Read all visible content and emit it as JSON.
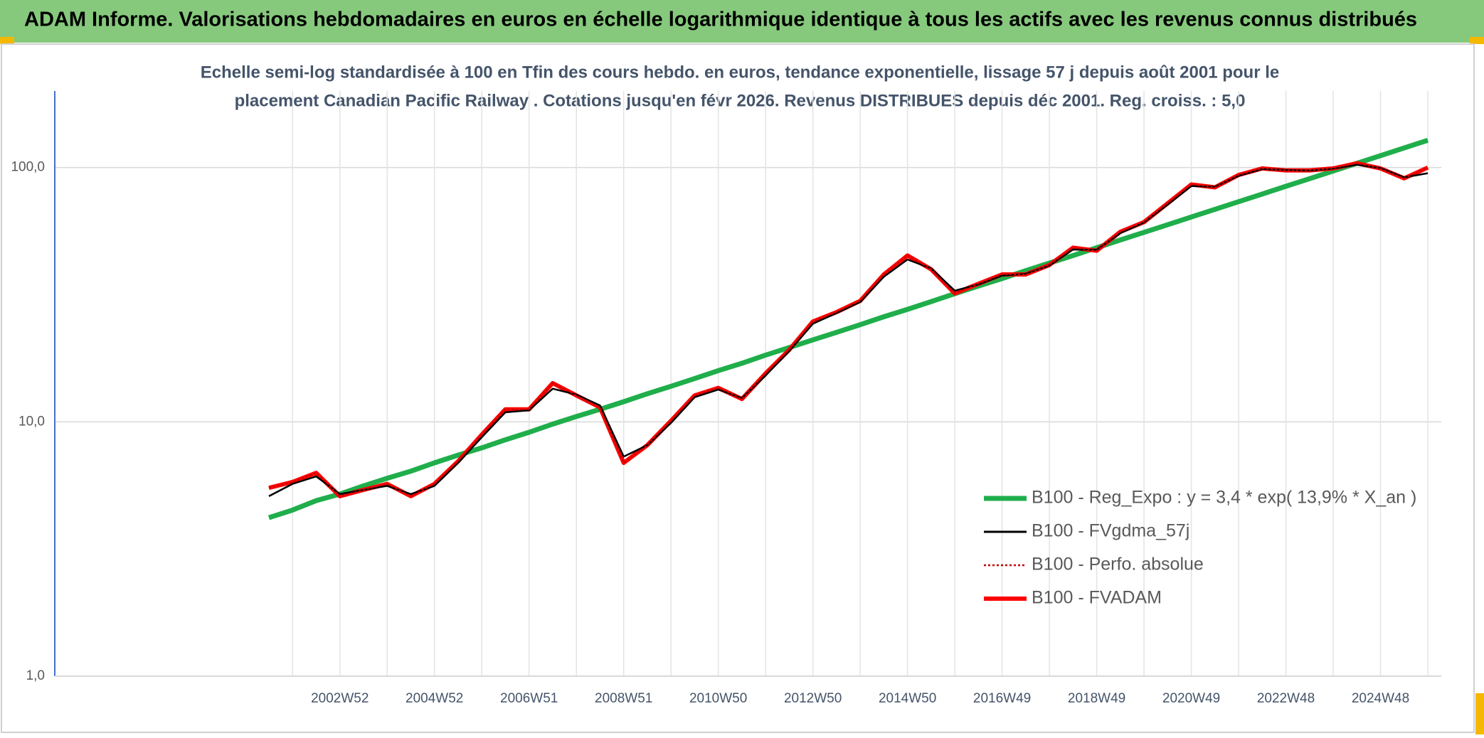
{
  "chart_data": {
    "type": "line",
    "title": "ADAM Informe. Valorisations hebdomadaires en euros en échelle logarithmique identique à tous les actifs avec les revenus connus distribués",
    "subtitle": [
      "Echelle semi-log standardisée à 100 en Tfin des cours hebdo. en euros, tendance exponentielle, lissage 57 j depuis août 2001 pour le",
      "placement Canadian Pacific Railway . Cotations jusqu'en févr 2026. Revenus DISTRIBUES depuis déc 2001. Reg. croiss. : 5,0"
    ],
    "log_scale": true,
    "grid": true,
    "legend": "right",
    "ylim": [
      1,
      200
    ],
    "yticks": [
      {
        "value": 1,
        "label": "1,0"
      },
      {
        "value": 10,
        "label": "10,0"
      },
      {
        "value": 100,
        "label": "100,0"
      }
    ],
    "categories": [
      null,
      null,
      null,
      "2002W52",
      null,
      null,
      null,
      "2004W52",
      null,
      null,
      null,
      "2006W51",
      null,
      null,
      null,
      "2008W51",
      null,
      null,
      null,
      "2010W50",
      null,
      null,
      null,
      "2012W50",
      null,
      null,
      null,
      "2014W50",
      null,
      null,
      null,
      "2016W49",
      null,
      null,
      null,
      "2018W49",
      null,
      null,
      null,
      "2020W49",
      null,
      null,
      null,
      "2022W48",
      null,
      null,
      null,
      "2024W48",
      null,
      null
    ],
    "series": [
      {
        "name": "B100 - Reg_Expo : y = 3,4 * exp( 13,9% *  X_an )",
        "color": "#1fae4b",
        "style": "solid",
        "width": 7,
        "values": [
          4.2,
          4.5,
          4.9,
          5.2,
          5.6,
          6.0,
          6.4,
          6.9,
          7.4,
          7.9,
          8.5,
          9.1,
          9.8,
          10.5,
          11.2,
          12.0,
          12.9,
          13.8,
          14.8,
          15.9,
          17.0,
          18.3,
          19.6,
          21.0,
          22.5,
          24.1,
          25.9,
          27.7,
          29.7,
          31.9,
          34.2,
          36.6,
          39.3,
          42.1,
          45.1,
          48.4,
          51.9,
          55.6,
          59.6,
          63.9,
          68.5,
          73.4,
          78.7,
          84.4,
          90.4,
          96.9,
          103.9,
          111.4,
          119.4,
          128.0
        ]
      },
      {
        "name": "B100 - FVADAM",
        "color": "#ff0000",
        "style": "solid",
        "width": 6,
        "values": [
          5.5,
          5.8,
          6.3,
          5.1,
          5.4,
          5.7,
          5.1,
          5.7,
          7.0,
          8.9,
          11.2,
          11.2,
          14.2,
          12.7,
          11.4,
          6.9,
          8.1,
          10.1,
          12.7,
          13.6,
          12.3,
          15.5,
          19.2,
          24.8,
          27.0,
          29.9,
          38.0,
          45.1,
          39.8,
          32.0,
          34.9,
          38.0,
          38.0,
          41.4,
          48.4,
          47.1,
          55.9,
          61.0,
          72.3,
          85.8,
          83.6,
          93.5,
          99.2,
          97.5,
          97.5,
          99.2,
          104,
          99.2,
          90.7,
          100
        ]
      },
      {
        "name": "B100 - FVgdma_57j",
        "color": "#000000",
        "style": "solid",
        "width": 2.5,
        "values": [
          5.1,
          5.7,
          6.1,
          5.2,
          5.4,
          5.6,
          5.2,
          5.6,
          6.9,
          8.7,
          10.9,
          11.1,
          13.5,
          12.8,
          11.6,
          7.3,
          8.1,
          9.9,
          12.5,
          13.4,
          12.4,
          15.2,
          19.0,
          24.3,
          26.8,
          29.6,
          37.2,
          43.5,
          40.1,
          32.8,
          34.7,
          37.6,
          38.2,
          41.2,
          47.6,
          47.5,
          55.2,
          60.8,
          71.5,
          84.6,
          84.0,
          92.8,
          98.7,
          97.8,
          97.3,
          99.0,
          102.5,
          99.5,
          91.5,
          95.0
        ]
      },
      {
        "name": "B100 - Perfo. absolue",
        "color": "#c00000",
        "style": "dotted",
        "width": 2,
        "values": [
          5.5,
          5.8,
          6.3,
          5.1,
          5.4,
          5.7,
          5.1,
          5.7,
          7.0,
          8.9,
          11.2,
          11.2,
          14.2,
          12.7,
          11.4,
          6.9,
          8.1,
          10.1,
          12.7,
          13.6,
          12.3,
          15.5,
          19.2,
          24.8,
          27.0,
          29.9,
          38.0,
          45.1,
          39.8,
          32.0,
          34.9,
          38.0,
          38.0,
          41.4,
          48.4,
          47.1,
          55.9,
          61.0,
          72.3,
          85.8,
          83.6,
          93.5,
          99.2,
          97.5,
          97.5,
          99.2,
          104,
          99.2,
          90.7,
          100
        ]
      }
    ],
    "legend_order": [
      0,
      2,
      3,
      1
    ]
  }
}
